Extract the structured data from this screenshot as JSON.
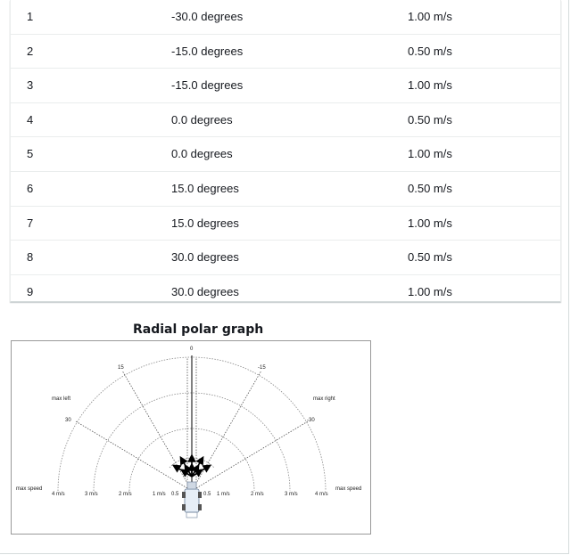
{
  "table": {
    "rows": [
      {
        "index": "1",
        "steering": "-30.0 degrees",
        "speed": "1.00 m/s"
      },
      {
        "index": "2",
        "steering": "-15.0 degrees",
        "speed": "0.50 m/s"
      },
      {
        "index": "3",
        "steering": "-15.0 degrees",
        "speed": "1.00 m/s"
      },
      {
        "index": "4",
        "steering": "0.0 degrees",
        "speed": "0.50 m/s"
      },
      {
        "index": "5",
        "steering": "0.0 degrees",
        "speed": "1.00 m/s"
      },
      {
        "index": "6",
        "steering": "15.0 degrees",
        "speed": "0.50 m/s"
      },
      {
        "index": "7",
        "steering": "15.0 degrees",
        "speed": "1.00 m/s"
      },
      {
        "index": "8",
        "steering": "30.0 degrees",
        "speed": "0.50 m/s"
      },
      {
        "index": "9",
        "steering": "30.0 degrees",
        "speed": "1.00 m/s"
      }
    ]
  },
  "graph": {
    "title": "Radial polar graph",
    "angle_labels": {
      "zero": "0",
      "left15": "15",
      "right15": "-15",
      "left30": "30",
      "right30": "-30"
    },
    "side_labels": {
      "max_left": "max left",
      "max_right": "max right",
      "max_speed_left": "max speed",
      "max_speed_right": "max speed"
    },
    "speed_labels_left": [
      "4 m/s",
      "3 m/s",
      "2 m/s",
      "1 m/s",
      "0.5"
    ],
    "speed_labels_right": [
      "0.5",
      "1 m/s",
      "2 m/s",
      "3 m/s",
      "4 m/s"
    ]
  }
}
